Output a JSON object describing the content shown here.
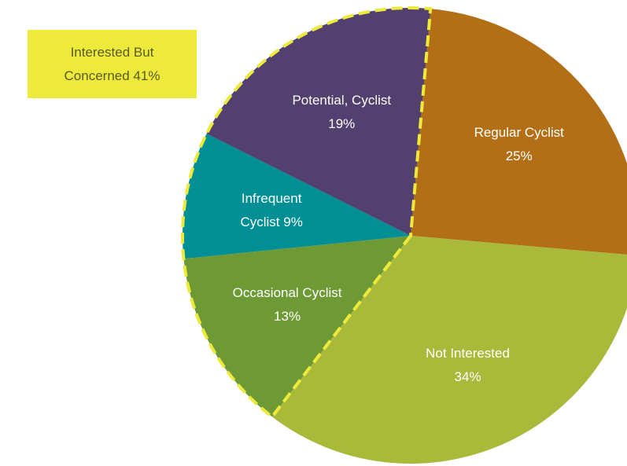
{
  "chart_data": {
    "type": "pie",
    "categories": [
      "Regular Cyclist",
      "Not Interested",
      "Occasional Cyclist",
      "Infrequent Cyclist",
      "Potential, Cyclist"
    ],
    "values": [
      25,
      34,
      13,
      9,
      19
    ],
    "value_labels": [
      "25%",
      "34%",
      "13%",
      "9%",
      "19%"
    ],
    "colors": [
      "#b36f15",
      "#a9b93a",
      "#6e9a35",
      "#008f94",
      "#52406f"
    ],
    "annotation": "Interested But Concerned 41%",
    "annotation_color": "#eeea3c"
  }
}
